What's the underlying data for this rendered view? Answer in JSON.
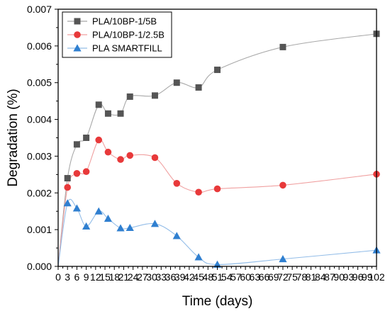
{
  "chart_data": {
    "type": "line",
    "xlabel": "Time (days)",
    "ylabel": "Degradation (%)",
    "xlim": [
      0,
      102
    ],
    "ylim": [
      0,
      0.007
    ],
    "xticks": [
      0,
      3,
      6,
      9,
      12,
      15,
      18,
      21,
      24,
      27,
      30,
      33,
      36,
      39,
      42,
      45,
      48,
      51,
      54,
      57,
      60,
      63,
      66,
      69,
      72,
      75,
      78,
      81,
      84,
      87,
      90,
      93,
      96,
      99,
      102
    ],
    "yticks": [
      0,
      0.001,
      0.002,
      0.003,
      0.004,
      0.005,
      0.006,
      0.007
    ],
    "ytick_labels": [
      "0.000",
      "0.001",
      "0.002",
      "0.003",
      "0.004",
      "0.005",
      "0.006",
      "0.007"
    ],
    "grid": false,
    "legend_position": "top-left",
    "series": [
      {
        "name": "PLA/10BP-1/5B",
        "marker": "square",
        "marker_color": "#555555",
        "line_color": "#a8a8a8",
        "x": [
          0,
          3,
          6,
          9,
          13,
          16,
          20,
          23,
          31,
          38,
          45,
          51,
          72,
          102
        ],
        "y": [
          0,
          0.0024,
          0.00332,
          0.0035,
          0.0044,
          0.00416,
          0.00416,
          0.00462,
          0.00465,
          0.005,
          0.00487,
          0.00535,
          0.00597,
          0.00633
        ]
      },
      {
        "name": "PLA/10BP-1/2.5B",
        "marker": "circle",
        "marker_color": "#e8393a",
        "line_color": "#f0a0a0",
        "x": [
          0,
          3,
          6,
          9,
          13,
          16,
          20,
          23,
          31,
          38,
          45,
          51,
          72,
          102
        ],
        "y": [
          0,
          0.00215,
          0.00253,
          0.00258,
          0.00344,
          0.00311,
          0.00291,
          0.00302,
          0.00296,
          0.00226,
          0.00202,
          0.00211,
          0.00221,
          0.00251
        ]
      },
      {
        "name": "PLA SMARTFILL",
        "marker": "triangle",
        "marker_color": "#2f7fd0",
        "line_color": "#93bde8",
        "x": [
          0,
          3,
          6,
          9,
          13,
          16,
          20,
          23,
          31,
          38,
          45,
          51,
          72,
          102
        ],
        "y": [
          0,
          0.00172,
          0.00158,
          0.00109,
          0.0015,
          0.0013,
          0.00104,
          0.00105,
          0.00116,
          0.00083,
          0.00025,
          5e-05,
          0.0002,
          0.00044
        ]
      }
    ]
  }
}
